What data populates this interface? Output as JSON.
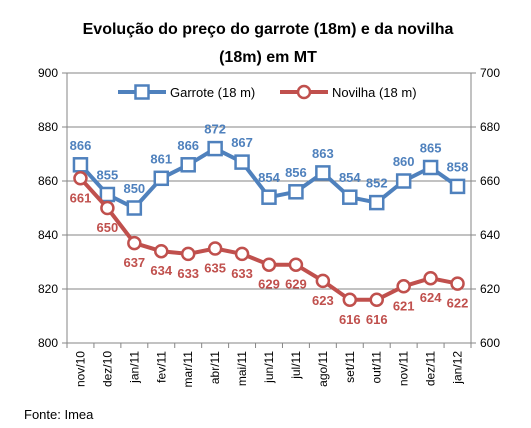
{
  "chart_data": {
    "type": "line",
    "title_line1": "Evolução do preço do garrote (18m) e da novilha",
    "title_line2": "(18m) em MT",
    "categories": [
      "nov/10",
      "dez/10",
      "jan/11",
      "fev/11",
      "mar/11",
      "abr/11",
      "mai/11",
      "jun/11",
      "jul/11",
      "ago/11",
      "set/11",
      "out/11",
      "nov/11",
      "dez/11",
      "jan/12"
    ],
    "y_left": {
      "min": 800,
      "max": 900,
      "ticks": [
        "800",
        "820",
        "840",
        "860",
        "880",
        "900"
      ]
    },
    "y_right": {
      "min": 600,
      "max": 700,
      "ticks": [
        "600",
        "620",
        "640",
        "660",
        "680",
        "700"
      ]
    },
    "grid": "horizontal",
    "legend_position": "top",
    "series": [
      {
        "name": "Garrote (18 m)",
        "axis": "left",
        "color": "#4f81bd",
        "marker": "square",
        "values": [
          866,
          855,
          850,
          861,
          866,
          872,
          867,
          854,
          856,
          863,
          854,
          852,
          860,
          865,
          858
        ],
        "labels": [
          "866",
          "855",
          "850",
          "861",
          "866",
          "872",
          "867",
          "854",
          "856",
          "863",
          "854",
          "852",
          "860",
          "865",
          "858"
        ]
      },
      {
        "name": "Novilha (18 m)",
        "axis": "right",
        "color": "#c0504d",
        "marker": "circle",
        "values": [
          661,
          650,
          637,
          634,
          633,
          635,
          633,
          629,
          629,
          623,
          616,
          616,
          621,
          624,
          622
        ],
        "labels": [
          "661",
          "650",
          "637",
          "634",
          "633",
          "635",
          "633",
          "629",
          "629",
          "623",
          "616",
          "616",
          "621",
          "624",
          "622"
        ]
      }
    ],
    "source": "Fonte: Imea"
  }
}
